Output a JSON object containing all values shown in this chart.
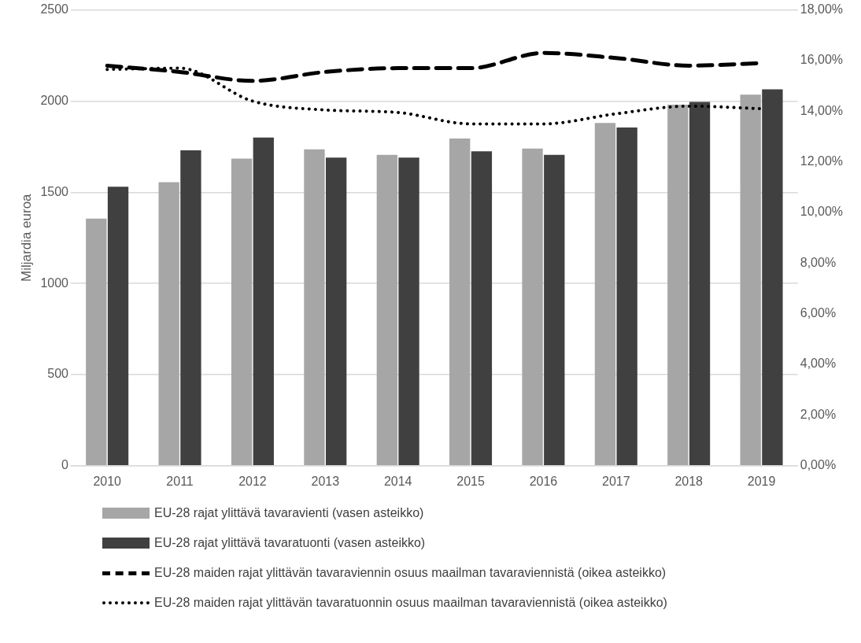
{
  "chart_data": {
    "type": "bar",
    "ylabel": "Miljardia euroa",
    "categories": [
      "2010",
      "2011",
      "2012",
      "2013",
      "2014",
      "2015",
      "2016",
      "2017",
      "2018",
      "2019"
    ],
    "series": [
      {
        "name": "EU-28 rajat ylittävä tavaravienti (vasen asteikko)",
        "color": "#a6a6a6",
        "values": [
          1355,
          1555,
          1685,
          1735,
          1705,
          1795,
          1740,
          1880,
          1980,
          2035
        ]
      },
      {
        "name": "EU-28 rajat ylittävä tavaratuonti (vasen asteikko)",
        "color": "#404040",
        "values": [
          1530,
          1730,
          1800,
          1690,
          1690,
          1725,
          1705,
          1855,
          1995,
          2065
        ]
      },
      {
        "type": "line",
        "axis": "y2",
        "line_style": "dashed",
        "name": "EU-28 maiden rajat ylittävän tavaraviennin osuus maailman tavaraviennistä (oikea asteikko)",
        "color": "#000000",
        "values": [
          15.8,
          15.55,
          15.2,
          15.55,
          15.7,
          15.7,
          16.3,
          16.1,
          15.8,
          15.9
        ]
      },
      {
        "type": "line",
        "axis": "y2",
        "line_style": "dotted",
        "name": "EU-28 maiden rajat ylittävän tavaratuonnin osuus maailman tavaraviennistä (oikea asteikko)",
        "color": "#000000",
        "values": [
          15.65,
          15.7,
          14.4,
          14.05,
          13.95,
          13.5,
          13.5,
          13.9,
          14.2,
          14.1
        ]
      }
    ],
    "ylim": [
      0,
      2500
    ],
    "yticks": [
      0,
      500,
      1000,
      1500,
      2000,
      2500
    ],
    "y2lim": [
      0,
      18
    ],
    "y2ticks": [
      {
        "value": 0,
        "label": "0,00%"
      },
      {
        "value": 2,
        "label": "2,00%"
      },
      {
        "value": 4,
        "label": "4,00%"
      },
      {
        "value": 6,
        "label": "6,00%"
      },
      {
        "value": 8,
        "label": "8,00%"
      },
      {
        "value": 10,
        "label": "10,00%"
      },
      {
        "value": 12,
        "label": "12,00%"
      },
      {
        "value": 14,
        "label": "14,00%"
      },
      {
        "value": 16,
        "label": "16,00%"
      },
      {
        "value": 18,
        "label": "18,00%"
      }
    ],
    "grid": "y",
    "legend": "bottom",
    "marker": "none"
  }
}
